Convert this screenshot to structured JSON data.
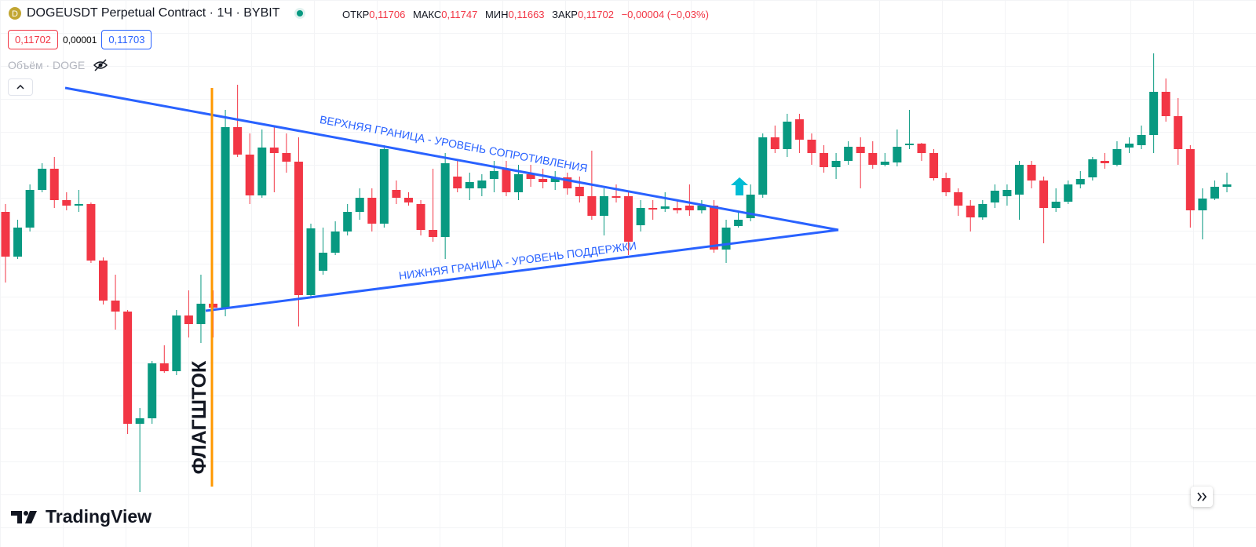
{
  "header": {
    "title": "DOGEUSDT Perpetual Contract · 1Ч · BYBIT",
    "open_label": "ОТКР",
    "open": "0,11706",
    "high_label": "МАКС",
    "high": "0,11747",
    "low_label": "МИН",
    "low": "0,11663",
    "close_label": "ЗАКР",
    "close": "0,11702",
    "change": "−0,00004 (−0,03%)",
    "sell": "0,11702",
    "spread": "0,00001",
    "buy": "0,11703",
    "volume": "Объём · DOGE"
  },
  "annotations": {
    "upper": "ВЕРХНЯЯ ГРАНИЦА - УРОВЕНЬ СОПРОТИВЛЕНИЯ",
    "lower": "НИЖНЯЯ ГРАНИЦА - УРОВЕНЬ ПОДДЕРЖКИ",
    "flagpole": "ФЛАГШТОК"
  },
  "logo": "TradingView",
  "chart_data": {
    "type": "candlestick",
    "up_color": "#089981",
    "down_color": "#f23645",
    "ylim": [
      0.10359,
      0.1245
    ],
    "open": [
      0.1164,
      0.11469,
      0.1158,
      0.11724,
      0.11805,
      0.11685,
      0.11664,
      0.1167,
      0.11454,
      0.11301,
      0.11259,
      0.1083,
      0.10851,
      0.11061,
      0.11031,
      0.11244,
      0.11211,
      0.11289,
      0.11274,
      0.11964,
      0.11859,
      0.11703,
      0.11886,
      0.11865,
      0.11832,
      0.11322,
      0.11415,
      0.11484,
      0.11565,
      0.1164,
      0.11694,
      0.11595,
      0.11724,
      0.11694,
      0.1167,
      0.11571,
      0.11544,
      0.11775,
      0.1173,
      0.1173,
      0.11766,
      0.11805,
      0.11715,
      0.11784,
      0.11766,
      0.11754,
      0.11772,
      0.11736,
      0.117,
      0.11625,
      0.117,
      0.117,
      0.11589,
      0.11655,
      0.11652,
      0.11655,
      0.11664,
      0.11646,
      0.11664,
      0.11496,
      0.11586,
      0.11616,
      0.11706,
      0.11925,
      0.1188,
      0.11994,
      0.11916,
      0.11865,
      0.11811,
      0.11835,
      0.11889,
      0.11865,
      0.1182,
      0.11829,
      0.11895,
      0.11901,
      0.11865,
      0.11769,
      0.11715,
      0.11664,
      0.11619,
      0.11676,
      0.117,
      0.11706,
      0.1182,
      0.1176,
      0.11655,
      0.11679,
      0.11745,
      0.11772,
      0.11835,
      0.1182,
      0.11886,
      0.11895,
      0.11934,
      0.12099,
      0.12006,
      0.1188,
      0.11646,
      0.11691,
      0.11736
    ],
    "high": [
      0.1167,
      0.1161,
      0.11745,
      0.11826,
      0.1185,
      0.11715,
      0.11724,
      0.11676,
      0.11466,
      0.114,
      0.11265,
      0.1089,
      0.1107,
      0.1113,
      0.11265,
      0.1134,
      0.114,
      0.1134,
      0.1203,
      0.12126,
      0.1194,
      0.11955,
      0.1197,
      0.1194,
      0.11925,
      0.11595,
      0.1158,
      0.11604,
      0.1167,
      0.1173,
      0.1173,
      0.11895,
      0.1176,
      0.11715,
      0.11685,
      0.11805,
      0.11865,
      0.11835,
      0.1179,
      0.11784,
      0.11835,
      0.11835,
      0.1182,
      0.1182,
      0.11805,
      0.11796,
      0.1179,
      0.11775,
      0.11874,
      0.1173,
      0.11745,
      0.11715,
      0.11685,
      0.11685,
      0.11715,
      0.11685,
      0.11745,
      0.11685,
      0.11685,
      0.1161,
      0.1164,
      0.11745,
      0.1194,
      0.1197,
      0.12015,
      0.12015,
      0.1194,
      0.11895,
      0.11865,
      0.1191,
      0.11925,
      0.1191,
      0.11865,
      0.11955,
      0.1203,
      0.11904,
      0.1188,
      0.1179,
      0.1173,
      0.11685,
      0.11685,
      0.11745,
      0.11745,
      0.11835,
      0.11835,
      0.11775,
      0.1173,
      0.1176,
      0.11796,
      0.1185,
      0.11865,
      0.1191,
      0.11925,
      0.1197,
      0.12246,
      0.1215,
      0.12075,
      0.11895,
      0.1173,
      0.1176,
      0.1179
    ],
    "low": [
      0.1137,
      0.1146,
      0.11565,
      0.11715,
      0.11655,
      0.11646,
      0.1164,
      0.11445,
      0.11286,
      0.1119,
      0.10791,
      0.10569,
      0.1083,
      0.11025,
      0.11016,
      0.1116,
      0.11139,
      0.1116,
      0.11241,
      0.1185,
      0.1167,
      0.11694,
      0.11715,
      0.1179,
      0.11202,
      0.1131,
      0.114,
      0.11475,
      0.1155,
      0.1161,
      0.11565,
      0.1158,
      0.1167,
      0.11664,
      0.1155,
      0.11526,
      0.1146,
      0.11715,
      0.11685,
      0.117,
      0.11715,
      0.117,
      0.11685,
      0.11736,
      0.1173,
      0.11724,
      0.11706,
      0.11676,
      0.1161,
      0.1155,
      0.11676,
      0.11475,
      0.11565,
      0.1161,
      0.1164,
      0.11634,
      0.11625,
      0.11634,
      0.11484,
      0.11445,
      0.1158,
      0.11604,
      0.11694,
      0.11865,
      0.1185,
      0.11865,
      0.1182,
      0.1179,
      0.11766,
      0.1182,
      0.1173,
      0.11805,
      0.11814,
      0.11814,
      0.1188,
      0.11835,
      0.1176,
      0.117,
      0.11625,
      0.11565,
      0.1161,
      0.11655,
      0.11664,
      0.1161,
      0.1173,
      0.1152,
      0.1164,
      0.1167,
      0.1173,
      0.1176,
      0.11805,
      0.11814,
      0.11865,
      0.1188,
      0.11865,
      0.11985,
      0.1182,
      0.1158,
      0.11535,
      0.11685,
      0.11715
    ],
    "close": [
      0.11469,
      0.1158,
      0.11724,
      0.11805,
      0.11685,
      0.11664,
      0.1167,
      0.11454,
      0.11301,
      0.11259,
      0.1083,
      0.10851,
      0.11061,
      0.11031,
      0.11244,
      0.11211,
      0.11289,
      0.11274,
      0.11964,
      0.11859,
      0.11703,
      0.11886,
      0.11865,
      0.11832,
      0.11322,
      0.11577,
      0.11484,
      0.11565,
      0.1164,
      0.11694,
      0.11595,
      0.1188,
      0.11694,
      0.11676,
      0.11571,
      0.11544,
      0.11826,
      0.1173,
      0.11754,
      0.1176,
      0.11796,
      0.11715,
      0.11784,
      0.11766,
      0.11754,
      0.11772,
      0.1173,
      0.117,
      0.11625,
      0.117,
      0.11694,
      0.11526,
      0.11655,
      0.11649,
      0.11661,
      0.11646,
      0.11646,
      0.11664,
      0.11496,
      0.1158,
      0.1161,
      0.11706,
      0.11925,
      0.1188,
      0.11985,
      0.11916,
      0.11865,
      0.11811,
      0.11835,
      0.11889,
      0.11865,
      0.1182,
      0.11832,
      0.11889,
      0.11901,
      0.11865,
      0.11769,
      0.11715,
      0.11664,
      0.11619,
      0.1167,
      0.11721,
      0.11724,
      0.1182,
      0.1176,
      0.11655,
      0.11679,
      0.11745,
      0.11766,
      0.11841,
      0.11826,
      0.1188,
      0.11901,
      0.11934,
      0.12099,
      0.12006,
      0.1188,
      0.11646,
      0.11691,
      0.11736,
      0.11745
    ]
  }
}
